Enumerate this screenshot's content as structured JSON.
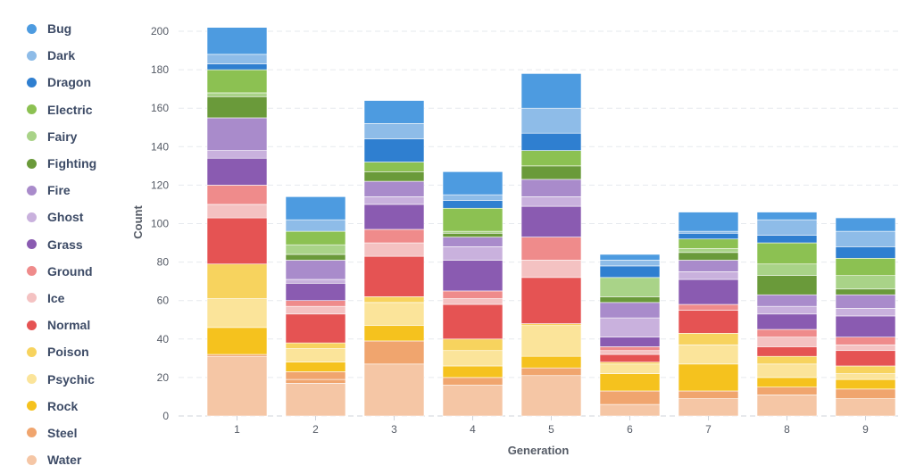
{
  "chart_data": {
    "type": "bar",
    "stacked": true,
    "xlabel": "Generation",
    "ylabel": "Count",
    "ylim": [
      0,
      200
    ],
    "yticks": [
      0,
      20,
      40,
      60,
      80,
      100,
      120,
      140,
      160,
      180,
      200
    ],
    "grid": true,
    "legend_position": "left",
    "categories": [
      "1",
      "2",
      "3",
      "4",
      "5",
      "6",
      "7",
      "8",
      "9"
    ],
    "series": [
      {
        "name": "Water",
        "color": "#f5c6a5",
        "values": [
          31,
          17,
          27,
          16,
          21,
          6,
          9,
          11,
          9
        ]
      },
      {
        "name": "Steel",
        "color": "#f0a56e",
        "values": [
          0,
          2,
          0,
          0,
          0,
          0,
          0,
          0,
          0
        ]
      },
      {
        "name": "Steel",
        "color": "#f0a56e",
        "values": [
          1,
          4,
          12,
          4,
          4,
          7,
          4,
          4,
          5
        ]
      },
      {
        "name": "Rock",
        "color": "#f5c21e",
        "values": [
          14,
          5,
          8,
          6,
          6,
          9,
          14,
          5,
          5
        ]
      },
      {
        "name": "Psychic",
        "color": "#fbe49a",
        "values": [
          15,
          7,
          12,
          8,
          16,
          5,
          10,
          7,
          3
        ]
      },
      {
        "name": "Poison",
        "color": "#f7d35e",
        "values": [
          18,
          3,
          3,
          6,
          1,
          1,
          6,
          4,
          4
        ]
      },
      {
        "name": "Normal",
        "color": "#e55353",
        "values": [
          24,
          15,
          21,
          18,
          24,
          4,
          12,
          5,
          8
        ]
      },
      {
        "name": "Ice",
        "color": "#f4c2c2",
        "values": [
          7,
          4,
          7,
          3,
          9,
          2,
          0,
          5,
          3
        ]
      },
      {
        "name": "Ground",
        "color": "#ef8b8b",
        "values": [
          10,
          3,
          7,
          4,
          12,
          2,
          3,
          4,
          4
        ]
      },
      {
        "name": "Grass",
        "color": "#8a5bb1",
        "values": [
          14,
          9,
          13,
          16,
          16,
          5,
          13,
          8,
          11
        ]
      },
      {
        "name": "Ghost",
        "color": "#c9b1dd",
        "values": [
          4,
          2,
          4,
          7,
          5,
          10,
          4,
          4,
          4
        ]
      },
      {
        "name": "Fire",
        "color": "#a98bcb",
        "values": [
          17,
          10,
          8,
          5,
          9,
          8,
          6,
          6,
          7
        ]
      },
      {
        "name": "Fighting",
        "color": "#6a9a3a",
        "values": [
          11,
          3,
          5,
          2,
          7,
          3,
          4,
          10,
          3
        ]
      },
      {
        "name": "Fairy",
        "color": "#a9d388",
        "values": [
          2,
          5,
          0,
          1,
          0,
          10,
          2,
          6,
          7
        ]
      },
      {
        "name": "Electric",
        "color": "#8cc152",
        "values": [
          12,
          7,
          5,
          12,
          8,
          0,
          5,
          11,
          9
        ]
      },
      {
        "name": "Dragon",
        "color": "#2f7fd0",
        "values": [
          3,
          0,
          12,
          4,
          9,
          6,
          3,
          4,
          6
        ]
      },
      {
        "name": "Dark",
        "color": "#8ebce8",
        "values": [
          5,
          6,
          8,
          3,
          13,
          3,
          1,
          8,
          8
        ]
      },
      {
        "name": "Bug",
        "color": "#4d9be0",
        "values": [
          14,
          12,
          12,
          12,
          18,
          3,
          10,
          4,
          7
        ]
      }
    ]
  },
  "legend": [
    {
      "label": "Bug",
      "color": "#4d9be0"
    },
    {
      "label": "Dark",
      "color": "#8ebce8"
    },
    {
      "label": "Dragon",
      "color": "#2f7fd0"
    },
    {
      "label": "Electric",
      "color": "#8cc152"
    },
    {
      "label": "Fairy",
      "color": "#a9d388"
    },
    {
      "label": "Fighting",
      "color": "#6a9a3a"
    },
    {
      "label": "Fire",
      "color": "#a98bcb"
    },
    {
      "label": "Ghost",
      "color": "#c9b1dd"
    },
    {
      "label": "Grass",
      "color": "#8a5bb1"
    },
    {
      "label": "Ground",
      "color": "#ef8b8b"
    },
    {
      "label": "Ice",
      "color": "#f4c2c2"
    },
    {
      "label": "Normal",
      "color": "#e55353"
    },
    {
      "label": "Poison",
      "color": "#f7d35e"
    },
    {
      "label": "Psychic",
      "color": "#fbe49a"
    },
    {
      "label": "Rock",
      "color": "#f5c21e"
    },
    {
      "label": "Steel",
      "color": "#f0a56e"
    },
    {
      "label": "Water",
      "color": "#f5c6a5"
    }
  ]
}
